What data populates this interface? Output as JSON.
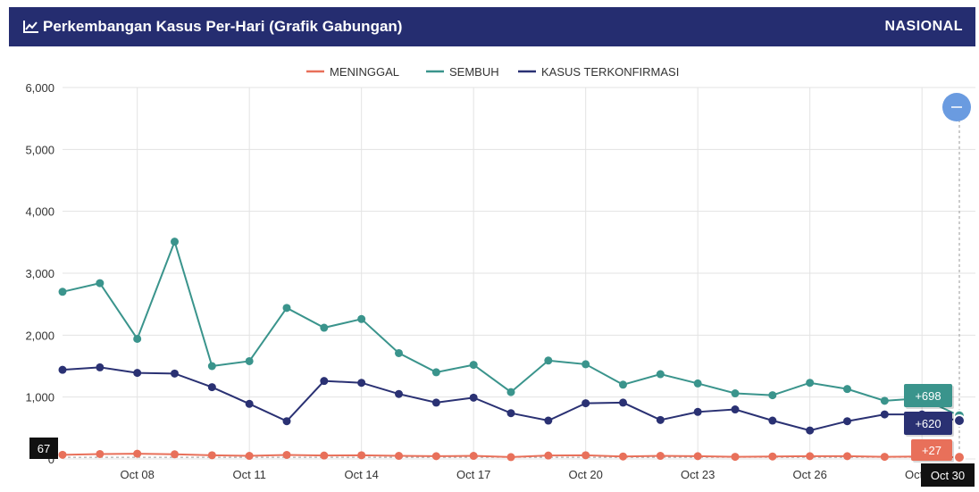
{
  "header": {
    "title": "Perkembangan Kasus Per-Hari (Grafik Gabungan)",
    "region": "NASIONAL",
    "icon": "line-chart-icon"
  },
  "colors": {
    "header_bg": "#252d70",
    "meninggal": "#e8705a",
    "sembuh": "#3a948c",
    "terkonfirmasi": "#2a3173",
    "reset_button": "#6a9be0"
  },
  "chart_data": {
    "type": "line",
    "title": "Perkembangan Kasus Per-Hari (Grafik Gabungan)",
    "x_labels": [
      "Oct 08",
      "Oct 11",
      "Oct 14",
      "Oct 17",
      "Oct 20",
      "Oct 23",
      "Oct 26",
      "Oct 29",
      "Oct 30"
    ],
    "x": [
      "Oct 06",
      "Oct 07",
      "Oct 08",
      "Oct 09",
      "Oct 10",
      "Oct 11",
      "Oct 12",
      "Oct 13",
      "Oct 14",
      "Oct 15",
      "Oct 16",
      "Oct 17",
      "Oct 18",
      "Oct 19",
      "Oct 20",
      "Oct 21",
      "Oct 22",
      "Oct 23",
      "Oct 24",
      "Oct 25",
      "Oct 26",
      "Oct 27",
      "Oct 28",
      "Oct 29",
      "Oct 30"
    ],
    "y_ticks": [
      "6,000",
      "5,000",
      "4,000",
      "3,000",
      "2,000",
      "1,000",
      "0"
    ],
    "ylim": [
      0,
      6000
    ],
    "legend_position": "top-center",
    "grid": true,
    "series": [
      {
        "name": "MENINGGAL",
        "values": [
          67,
          80,
          85,
          75,
          60,
          50,
          65,
          55,
          60,
          50,
          45,
          50,
          30,
          55,
          60,
          40,
          50,
          45,
          35,
          40,
          45,
          45,
          35,
          40,
          27
        ]
      },
      {
        "name": "SEMBUH",
        "values": [
          2700,
          2840,
          1940,
          3510,
          1500,
          1580,
          2440,
          2120,
          2260,
          1710,
          1400,
          1520,
          1080,
          1590,
          1530,
          1200,
          1370,
          1220,
          1060,
          1030,
          1230,
          1130,
          940,
          980,
          698
        ]
      },
      {
        "name": "KASUS TERKONFIRMASI",
        "values": [
          1440,
          1480,
          1390,
          1380,
          1160,
          890,
          610,
          1260,
          1230,
          1050,
          910,
          990,
          740,
          620,
          900,
          910,
          630,
          760,
          800,
          620,
          460,
          610,
          720,
          720,
          620
        ]
      }
    ],
    "tooltips": {
      "date": "Oct 30",
      "first_value_badge": "67",
      "sembuh": "+698",
      "terkonfirmasi": "+620",
      "meninggal": "+27"
    }
  }
}
